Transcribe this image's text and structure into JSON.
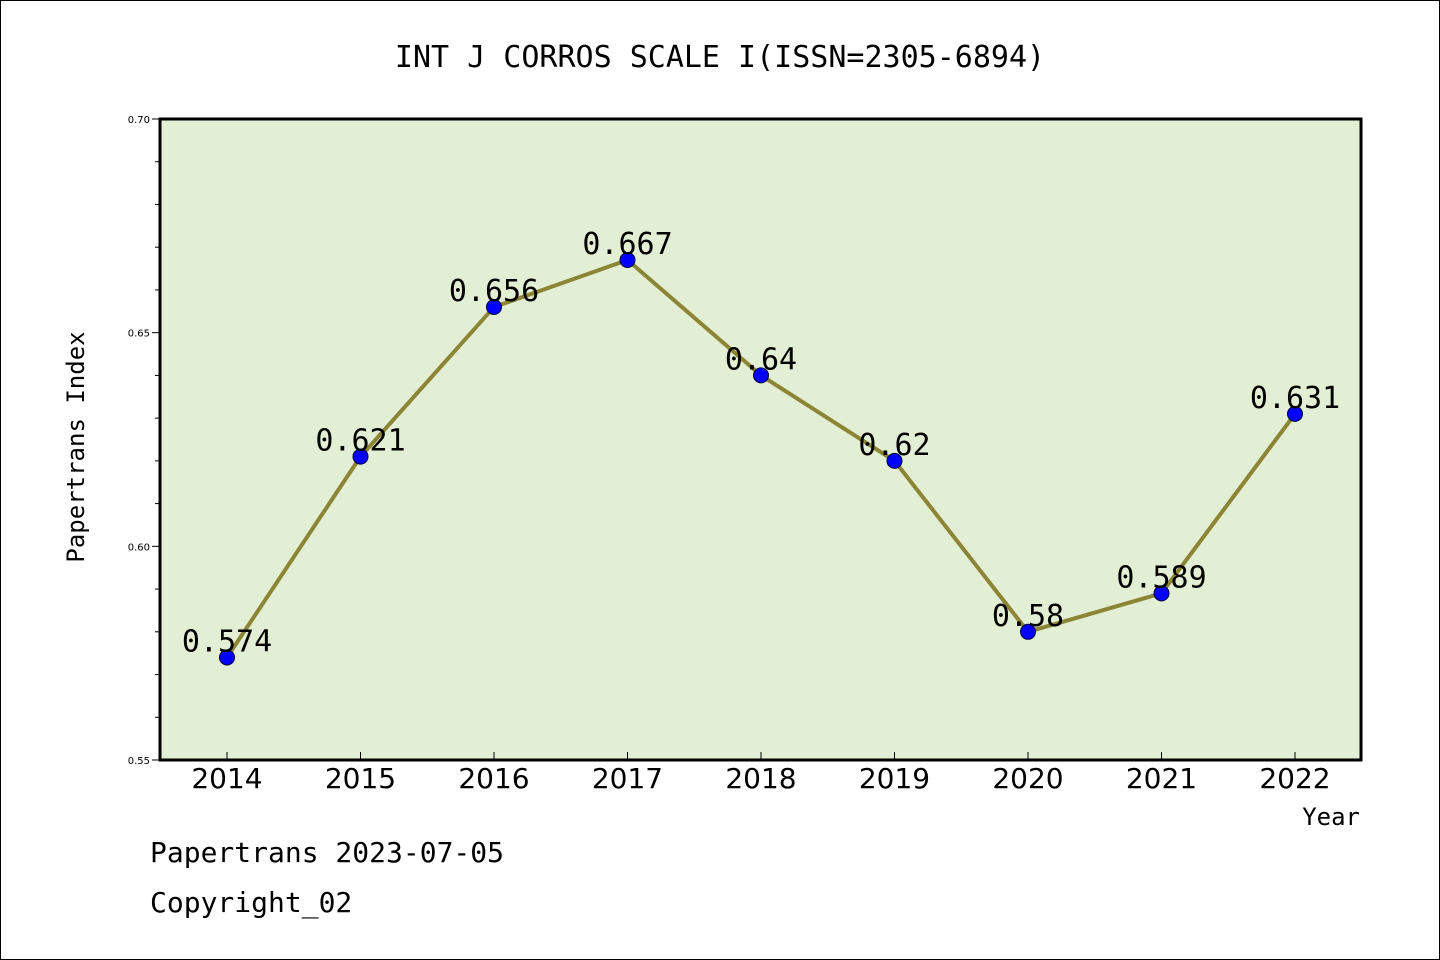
{
  "chart_data": {
    "type": "line",
    "title": "INT J CORROS SCALE I(ISSN=2305-6894)",
    "xlabel": "Year",
    "ylabel": "Papertrans Index",
    "categories": [
      "2014",
      "2015",
      "2016",
      "2017",
      "2018",
      "2019",
      "2020",
      "2021",
      "2022"
    ],
    "values": [
      0.574,
      0.621,
      0.656,
      0.667,
      0.64,
      0.62,
      0.58,
      0.589,
      0.631
    ],
    "data_labels": [
      "0.574",
      "0.621",
      "0.656",
      "0.667",
      "0.64",
      "0.62",
      "0.58",
      "0.589",
      "0.631"
    ],
    "ylim": [
      0.55,
      0.7
    ],
    "yticks": [
      "0.55",
      "0.60",
      "0.65",
      "0.70"
    ],
    "grid": false,
    "colors": {
      "plot_background": "#e2efd4",
      "line": "#8c8535",
      "marker": "#0000ff"
    }
  },
  "footer": {
    "line1": "Papertrans 2023-07-05",
    "line2": "Copyright_02"
  }
}
